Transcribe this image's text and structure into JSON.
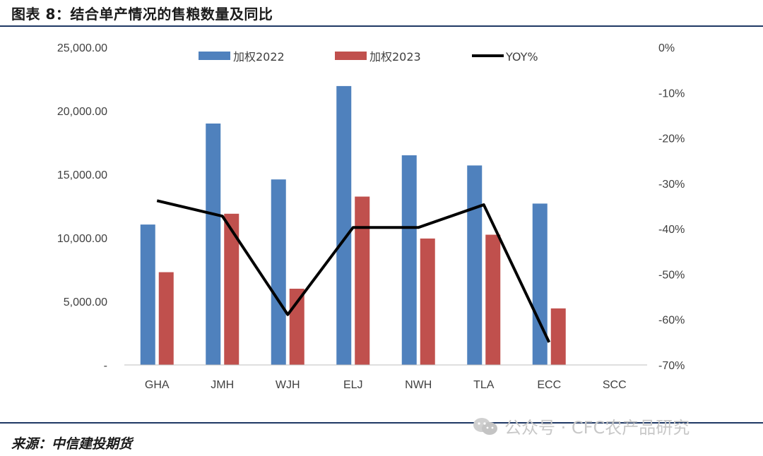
{
  "figure": {
    "title": "图表 8：结合单产情况的售粮数量及同比",
    "source": "来源：中信建投期货",
    "watermark": "公众号 · CFC农产品研究"
  },
  "colors": {
    "series_2022": "#4f81bd",
    "series_2023": "#c0504d",
    "yoy_line": "#000000",
    "rule": "#1f3864"
  },
  "chart_data": {
    "type": "bar",
    "categories": [
      "GHA",
      "JMH",
      "WJH",
      "ELJ",
      "NWH",
      "TLA",
      "ECC",
      "SCC"
    ],
    "series": [
      {
        "name": "加权2022",
        "axis": "left",
        "type": "bar",
        "values": [
          11050,
          19000,
          14600,
          21950,
          16500,
          15700,
          12700,
          null
        ]
      },
      {
        "name": "加权2023",
        "axis": "left",
        "type": "bar",
        "values": [
          7300,
          11900,
          6000,
          13250,
          9950,
          10250,
          4450,
          null
        ]
      },
      {
        "name": "YOY%",
        "axis": "right",
        "type": "line",
        "values": [
          -33.8,
          -37.2,
          -58.9,
          -39.7,
          -39.7,
          -34.7,
          -65.0,
          null
        ]
      }
    ],
    "ylim_left": [
      0,
      25000
    ],
    "ylim_right": [
      -70,
      0
    ],
    "left_ticks": [
      "-",
      "5,000.00",
      "10,000.00",
      "15,000.00",
      "20,000.00",
      "25,000.00"
    ],
    "right_ticks": [
      "0%",
      "-10%",
      "-20%",
      "-30%",
      "-40%",
      "-50%",
      "-60%",
      "-70%"
    ],
    "legend_position": "top",
    "grid": false
  }
}
